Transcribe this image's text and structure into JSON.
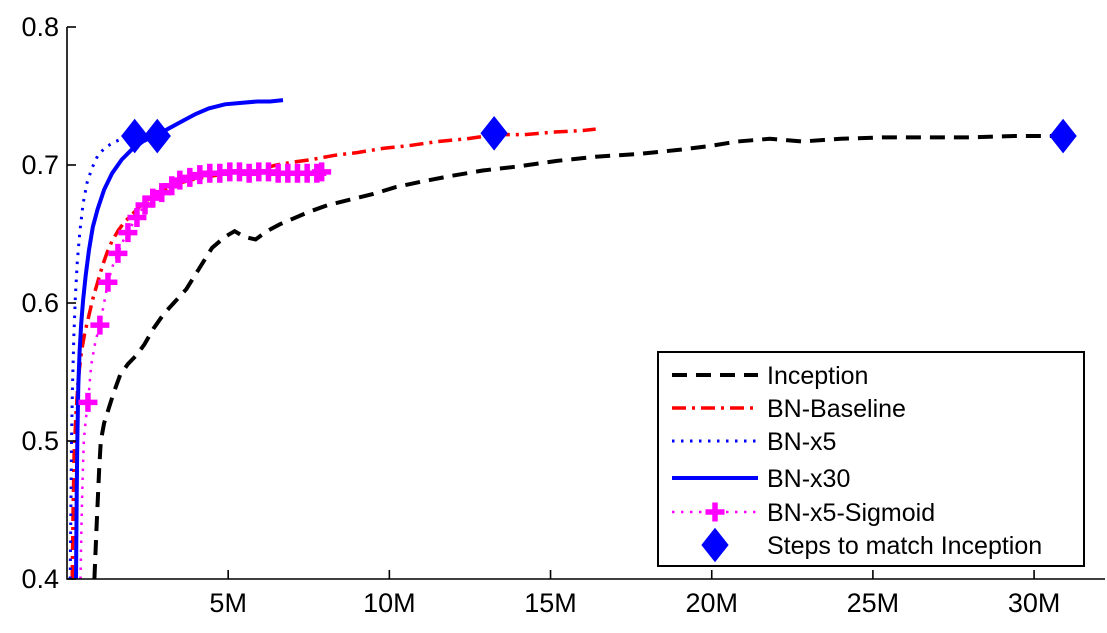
{
  "chart_data": {
    "type": "line",
    "title": "",
    "xlabel": "",
    "ylabel": "",
    "xlim": [
      0,
      32.2
    ],
    "ylim": [
      0.4,
      0.8
    ],
    "x_unit": "millions of training steps",
    "grid": false,
    "x_ticks": [
      {
        "value": 5,
        "label": "5M"
      },
      {
        "value": 10,
        "label": "10M"
      },
      {
        "value": 15,
        "label": "15M"
      },
      {
        "value": 20,
        "label": "20M"
      },
      {
        "value": 25,
        "label": "25M"
      },
      {
        "value": 30,
        "label": "30M"
      }
    ],
    "y_ticks": [
      {
        "value": 0.4,
        "label": "0.4"
      },
      {
        "value": 0.5,
        "label": "0.5"
      },
      {
        "value": 0.6,
        "label": "0.6"
      },
      {
        "value": 0.7,
        "label": "0.7"
      },
      {
        "value": 0.8,
        "label": "0.8"
      }
    ],
    "legend_position": "lower right",
    "series": [
      {
        "name": "Inception",
        "color": "#000000",
        "line_style": "dashed",
        "line_width": 4,
        "points": [
          [
            0.85,
            0.4
          ],
          [
            0.92,
            0.44
          ],
          [
            1.0,
            0.48
          ],
          [
            1.05,
            0.5
          ],
          [
            1.15,
            0.513
          ],
          [
            1.3,
            0.524
          ],
          [
            1.45,
            0.535
          ],
          [
            1.65,
            0.548
          ],
          [
            1.9,
            0.556
          ],
          [
            2.15,
            0.562
          ],
          [
            2.4,
            0.57
          ],
          [
            2.7,
            0.582
          ],
          [
            3.0,
            0.592
          ],
          [
            3.35,
            0.601
          ],
          [
            3.7,
            0.61
          ],
          [
            4.1,
            0.625
          ],
          [
            4.5,
            0.64
          ],
          [
            4.9,
            0.648
          ],
          [
            5.2,
            0.652
          ],
          [
            5.5,
            0.648
          ],
          [
            5.85,
            0.646
          ],
          [
            6.2,
            0.652
          ],
          [
            6.6,
            0.657
          ],
          [
            7.0,
            0.661
          ],
          [
            7.5,
            0.666
          ],
          [
            8.1,
            0.671
          ],
          [
            8.8,
            0.675
          ],
          [
            9.5,
            0.679
          ],
          [
            10.2,
            0.684
          ],
          [
            11.0,
            0.688
          ],
          [
            11.9,
            0.692
          ],
          [
            12.9,
            0.696
          ],
          [
            14.0,
            0.699
          ],
          [
            15.2,
            0.703
          ],
          [
            16.4,
            0.706
          ],
          [
            17.7,
            0.708
          ],
          [
            19.0,
            0.711
          ],
          [
            20.0,
            0.714
          ],
          [
            20.8,
            0.717
          ],
          [
            21.8,
            0.719
          ],
          [
            22.8,
            0.717
          ],
          [
            24.0,
            0.719
          ],
          [
            25.3,
            0.72
          ],
          [
            26.6,
            0.72
          ],
          [
            28.0,
            0.72
          ],
          [
            29.4,
            0.721
          ],
          [
            30.9,
            0.721
          ]
        ]
      },
      {
        "name": "BN-Baseline",
        "color": "#ff0000",
        "line_style": "dashdot",
        "line_width": 3.5,
        "points": [
          [
            0.16,
            0.4
          ],
          [
            0.19,
            0.45
          ],
          [
            0.22,
            0.49
          ],
          [
            0.28,
            0.52
          ],
          [
            0.35,
            0.545
          ],
          [
            0.45,
            0.565
          ],
          [
            0.55,
            0.578
          ],
          [
            0.67,
            0.59
          ],
          [
            0.8,
            0.603
          ],
          [
            0.95,
            0.615
          ],
          [
            1.1,
            0.627
          ],
          [
            1.25,
            0.637
          ],
          [
            1.4,
            0.645
          ],
          [
            1.6,
            0.653
          ],
          [
            1.8,
            0.659
          ],
          [
            2.05,
            0.665
          ],
          [
            2.35,
            0.672
          ],
          [
            2.7,
            0.678
          ],
          [
            3.1,
            0.683
          ],
          [
            3.5,
            0.687
          ],
          [
            4.0,
            0.69
          ],
          [
            4.5,
            0.692
          ],
          [
            5.0,
            0.694
          ],
          [
            5.5,
            0.695
          ],
          [
            6.0,
            0.697
          ],
          [
            6.5,
            0.7
          ],
          [
            7.0,
            0.702
          ],
          [
            7.6,
            0.704
          ],
          [
            8.3,
            0.707
          ],
          [
            9.0,
            0.709
          ],
          [
            9.8,
            0.712
          ],
          [
            10.6,
            0.714
          ],
          [
            11.5,
            0.717
          ],
          [
            12.4,
            0.719
          ],
          [
            13.3,
            0.722
          ],
          [
            14.2,
            0.722
          ],
          [
            15.2,
            0.724
          ],
          [
            16.0,
            0.725
          ],
          [
            16.4,
            0.726
          ]
        ]
      },
      {
        "name": "BN-x5",
        "color": "#0000ff",
        "line_style": "dotted",
        "line_width": 3,
        "points": [
          [
            0.1,
            0.4
          ],
          [
            0.12,
            0.45
          ],
          [
            0.14,
            0.5
          ],
          [
            0.17,
            0.54
          ],
          [
            0.21,
            0.575
          ],
          [
            0.26,
            0.605
          ],
          [
            0.32,
            0.63
          ],
          [
            0.4,
            0.652
          ],
          [
            0.5,
            0.672
          ],
          [
            0.62,
            0.687
          ],
          [
            0.78,
            0.698
          ],
          [
            0.96,
            0.707
          ],
          [
            1.2,
            0.713
          ],
          [
            1.5,
            0.717
          ],
          [
            1.85,
            0.72
          ],
          [
            2.2,
            0.722
          ],
          [
            2.6,
            0.723
          ]
        ]
      },
      {
        "name": "BN-x30",
        "color": "#0000ff",
        "line_style": "solid",
        "line_width": 4,
        "points": [
          [
            0.28,
            0.4
          ],
          [
            0.3,
            0.46
          ],
          [
            0.32,
            0.5
          ],
          [
            0.35,
            0.54
          ],
          [
            0.39,
            0.565
          ],
          [
            0.44,
            0.585
          ],
          [
            0.5,
            0.602
          ],
          [
            0.58,
            0.62
          ],
          [
            0.68,
            0.638
          ],
          [
            0.8,
            0.655
          ],
          [
            0.95,
            0.668
          ],
          [
            1.15,
            0.682
          ],
          [
            1.4,
            0.694
          ],
          [
            1.7,
            0.704
          ],
          [
            2.0,
            0.711
          ],
          [
            2.35,
            0.717
          ],
          [
            2.8,
            0.722
          ],
          [
            3.2,
            0.727
          ],
          [
            3.6,
            0.732
          ],
          [
            4.0,
            0.737
          ],
          [
            4.4,
            0.741
          ],
          [
            4.9,
            0.744
          ],
          [
            5.4,
            0.745
          ],
          [
            5.9,
            0.746
          ],
          [
            6.3,
            0.746
          ],
          [
            6.7,
            0.747
          ]
        ]
      },
      {
        "name": "BN-x5-Sigmoid",
        "color": "#ff00ff",
        "line_style": "dotted",
        "line_width": 2.5,
        "marker": "plus",
        "points": [
          [
            0.42,
            0.4
          ],
          [
            0.45,
            0.44
          ],
          [
            0.48,
            0.47
          ],
          [
            0.52,
            0.5
          ],
          [
            0.58,
            0.515
          ],
          [
            0.65,
            0.528
          ],
          [
            0.75,
            0.555
          ],
          [
            0.88,
            0.572
          ],
          [
            1.02,
            0.584
          ],
          [
            1.15,
            0.6
          ],
          [
            1.27,
            0.615
          ],
          [
            1.42,
            0.627
          ],
          [
            1.58,
            0.636
          ],
          [
            1.74,
            0.645
          ],
          [
            1.89,
            0.651
          ],
          [
            2.03,
            0.657
          ],
          [
            2.17,
            0.662
          ],
          [
            2.3,
            0.667
          ],
          [
            2.42,
            0.671
          ],
          [
            2.54,
            0.674
          ],
          [
            2.66,
            0.676
          ],
          [
            2.8,
            0.678
          ],
          [
            2.94,
            0.68
          ],
          [
            3.1,
            0.683
          ],
          [
            3.25,
            0.685
          ],
          [
            3.37,
            0.687
          ],
          [
            3.5,
            0.689
          ],
          [
            3.65,
            0.69
          ],
          [
            3.81,
            0.691
          ],
          [
            3.96,
            0.692
          ],
          [
            4.12,
            0.693
          ],
          [
            4.28,
            0.693
          ],
          [
            4.43,
            0.694
          ],
          [
            4.58,
            0.694
          ],
          [
            4.74,
            0.694
          ],
          [
            4.9,
            0.694
          ],
          [
            5.05,
            0.695
          ],
          [
            5.2,
            0.694
          ],
          [
            5.35,
            0.695
          ],
          [
            5.5,
            0.695
          ],
          [
            5.65,
            0.694
          ],
          [
            5.8,
            0.695
          ],
          [
            5.95,
            0.695
          ],
          [
            6.1,
            0.694
          ],
          [
            6.25,
            0.695
          ],
          [
            6.4,
            0.695
          ],
          [
            6.55,
            0.694
          ],
          [
            6.7,
            0.694
          ],
          [
            6.85,
            0.694
          ],
          [
            7.0,
            0.694
          ],
          [
            7.15,
            0.694
          ],
          [
            7.3,
            0.693
          ],
          [
            7.45,
            0.694
          ],
          [
            7.6,
            0.694
          ],
          [
            7.75,
            0.694
          ],
          [
            7.9,
            0.695
          ]
        ],
        "marker_points": [
          [
            0.65,
            0.528
          ],
          [
            1.02,
            0.584
          ],
          [
            1.27,
            0.615
          ],
          [
            1.58,
            0.636
          ],
          [
            1.89,
            0.651
          ],
          [
            2.17,
            0.662
          ],
          [
            2.42,
            0.671
          ],
          [
            2.66,
            0.676
          ],
          [
            2.94,
            0.68
          ],
          [
            3.25,
            0.685
          ],
          [
            3.5,
            0.689
          ],
          [
            3.81,
            0.691
          ],
          [
            4.12,
            0.693
          ],
          [
            4.43,
            0.694
          ],
          [
            4.74,
            0.694
          ],
          [
            5.05,
            0.695
          ],
          [
            5.35,
            0.695
          ],
          [
            5.65,
            0.694
          ],
          [
            5.95,
            0.695
          ],
          [
            6.25,
            0.695
          ],
          [
            6.55,
            0.694
          ],
          [
            6.85,
            0.694
          ],
          [
            7.15,
            0.694
          ],
          [
            7.45,
            0.694
          ],
          [
            7.75,
            0.694
          ],
          [
            7.9,
            0.695
          ]
        ]
      },
      {
        "name": "Steps to match Inception",
        "color": "#0000ff",
        "line_style": "none",
        "marker": "diamond",
        "points": [
          [
            2.1,
            0.721
          ],
          [
            2.8,
            0.721
          ],
          [
            13.25,
            0.723
          ],
          [
            30.9,
            0.721
          ]
        ]
      }
    ],
    "legend": {
      "entries": [
        {
          "label": "Inception"
        },
        {
          "label": "BN-Baseline"
        },
        {
          "label": "BN-x5"
        },
        {
          "label": "BN-x30"
        },
        {
          "label": "BN-x5-Sigmoid"
        },
        {
          "label": "Steps to match Inception"
        }
      ]
    },
    "colors": {
      "axis": "#000000",
      "background": "#ffffff",
      "legend_border": "#000000",
      "legend_background": "#ffffff"
    }
  }
}
